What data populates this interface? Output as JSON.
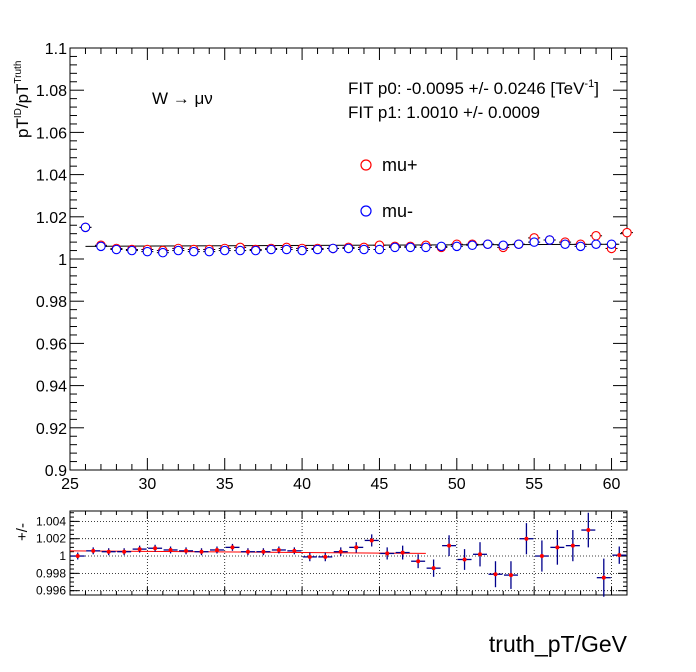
{
  "chart_data": [
    {
      "type": "scatter",
      "ylabel": {
        "main": "pT",
        "sup1": "ID",
        "mid": "/pT",
        "sup2": "Truth"
      },
      "xlabel": "truth_pT/GeV",
      "xlim": [
        25,
        61
      ],
      "ylim": [
        0.9,
        1.1
      ],
      "x_ticks": [
        "25",
        "30",
        "35",
        "40",
        "45",
        "50",
        "55",
        "60"
      ],
      "y_ticks": [
        "0.9",
        "0.92",
        "0.94",
        "0.96",
        "0.98",
        "1",
        "1.02",
        "1.04",
        "1.06",
        "1.08",
        "1.1"
      ],
      "process_label": "W → μν",
      "fit_p0": {
        "text": "FIT p0: -0.0095 +/- 0.0246 [TeV",
        "sup": "-1",
        "close": "]"
      },
      "fit_p1": "FIT p1: 1.0010 +/- 0.0009",
      "legend_position": "upper-center",
      "grid": false,
      "x": [
        26,
        27,
        28,
        29,
        30,
        31,
        32,
        33,
        34,
        35,
        36,
        37,
        38,
        39,
        40,
        41,
        42,
        43,
        44,
        45,
        46,
        47,
        48,
        49,
        50,
        51,
        52,
        53,
        54,
        55,
        56,
        57,
        58,
        59,
        60,
        61
      ],
      "series": [
        {
          "name": "mu+",
          "color": "#ff0000",
          "values": [
            1.015,
            1.0065,
            1.005,
            1.0045,
            1.0045,
            1.004,
            1.005,
            1.0045,
            1.0045,
            1.005,
            1.0055,
            1.0045,
            1.005,
            1.0055,
            1.005,
            1.005,
            1.005,
            1.0055,
            1.0055,
            1.0065,
            1.006,
            1.006,
            1.0065,
            1.0055,
            1.007,
            1.007,
            1.007,
            1.0055,
            1.007,
            1.01,
            1.009,
            1.008,
            1.007,
            1.011,
            1.005,
            1.0125
          ]
        },
        {
          "name": "mu-",
          "color": "#0000ff",
          "values": [
            1.015,
            1.006,
            1.0045,
            1.004,
            1.0035,
            1.003,
            1.004,
            1.0035,
            1.0035,
            1.004,
            1.004,
            1.004,
            1.0045,
            1.0045,
            1.004,
            1.0045,
            1.005,
            1.005,
            1.0045,
            1.0045,
            1.0055,
            1.0055,
            1.0055,
            1.006,
            1.006,
            1.0065,
            1.007,
            1.0065,
            1.007,
            1.008,
            1.009,
            1.007,
            1.006,
            1.007,
            1.007,
            null
          ]
        }
      ]
    },
    {
      "type": "scatter",
      "ylabel": "+/-",
      "xlim": [
        25,
        61
      ],
      "ylim": [
        0.9955,
        1.0052
      ],
      "y_ticks": [
        "0.996",
        "0.998",
        "1",
        "1.002",
        "1.004"
      ],
      "grid": true,
      "x": [
        25.5,
        26.5,
        27.5,
        28.5,
        29.5,
        30.5,
        31.5,
        32.5,
        33.5,
        34.5,
        35.5,
        36.5,
        37.5,
        38.5,
        39.5,
        40.5,
        41.5,
        42.5,
        43.5,
        44.5,
        45.5,
        46.5,
        47.5,
        48.5,
        49.5,
        50.5,
        51.5,
        52.5,
        53.5,
        54.5,
        55.5,
        56.5,
        57.5,
        58.5,
        59.5,
        60.5
      ],
      "values": [
        1.0,
        1.0006,
        1.0005,
        1.0005,
        1.0008,
        1.0009,
        1.0007,
        1.0006,
        1.0005,
        1.0007,
        1.001,
        1.0005,
        1.0005,
        1.0007,
        1.0006,
        0.9999,
        0.9999,
        1.0005,
        1.001,
        1.0018,
        1.0003,
        1.0004,
        0.9994,
        0.9986,
        1.0012,
        0.9996,
        1.0002,
        0.9979,
        0.9978,
        1.002,
        1.0,
        1.001,
        1.0012,
        1.003,
        0.9975,
        1.0001
      ],
      "errors": [
        0.0004,
        0.0004,
        0.0004,
        0.0004,
        0.0004,
        0.0004,
        0.0004,
        0.0004,
        0.0004,
        0.0004,
        0.0004,
        0.0004,
        0.0004,
        0.0004,
        0.0004,
        0.0005,
        0.0005,
        0.0005,
        0.0006,
        0.0007,
        0.0007,
        0.0008,
        0.0008,
        0.001,
        0.0012,
        0.0012,
        0.0014,
        0.0015,
        0.0016,
        0.0018,
        0.0018,
        0.002,
        0.0018,
        0.002,
        0.0022,
        0.001
      ],
      "fit_line": {
        "x": [
          25,
          48
        ],
        "y": [
          1.0006,
          1.0003
        ],
        "color": "#ff0000"
      }
    }
  ]
}
